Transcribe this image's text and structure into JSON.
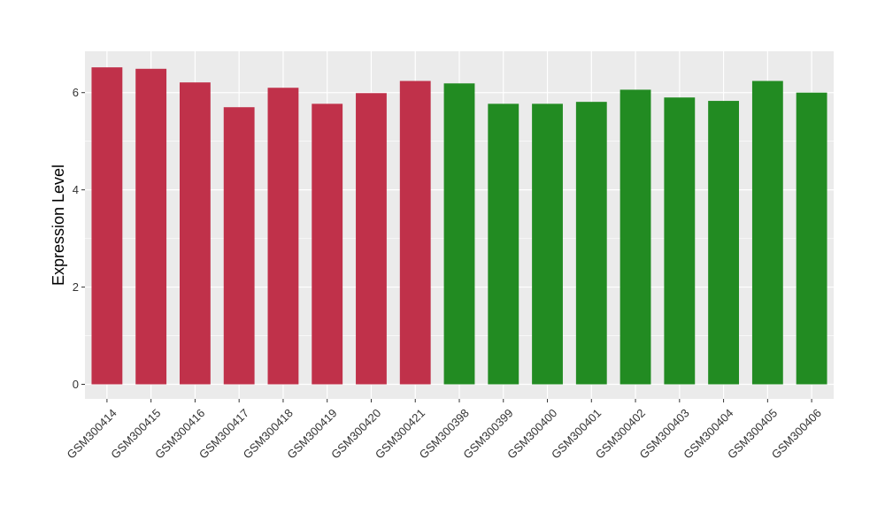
{
  "chart_data": {
    "type": "bar",
    "title": "",
    "xlabel": "",
    "ylabel": "Expression Level",
    "ylim": [
      -0.3,
      6.85
    ],
    "yticks": [
      0,
      2,
      4,
      6
    ],
    "ytick_labels": [
      "0",
      "2",
      "4",
      "6"
    ],
    "grid": true,
    "legend": "none",
    "categories": [
      "GSM300414",
      "GSM300415",
      "GSM300416",
      "GSM300417",
      "GSM300418",
      "GSM300419",
      "GSM300420",
      "GSM300421",
      "GSM300398",
      "GSM300399",
      "GSM300400",
      "GSM300401",
      "GSM300402",
      "GSM300403",
      "GSM300404",
      "GSM300405",
      "GSM300406"
    ],
    "values": [
      6.52,
      6.49,
      6.21,
      5.7,
      6.1,
      5.77,
      5.99,
      6.24,
      6.19,
      5.77,
      5.77,
      5.81,
      6.06,
      5.9,
      5.83,
      6.24,
      6.0
    ],
    "colors": [
      "#c0314a",
      "#c0314a",
      "#c0314a",
      "#c0314a",
      "#c0314a",
      "#c0314a",
      "#c0314a",
      "#c0314a",
      "#228b22",
      "#228b22",
      "#228b22",
      "#228b22",
      "#228b22",
      "#228b22",
      "#228b22",
      "#228b22",
      "#228b22"
    ],
    "panel_background": "#ebebeb",
    "grid_color": "#ffffff"
  }
}
